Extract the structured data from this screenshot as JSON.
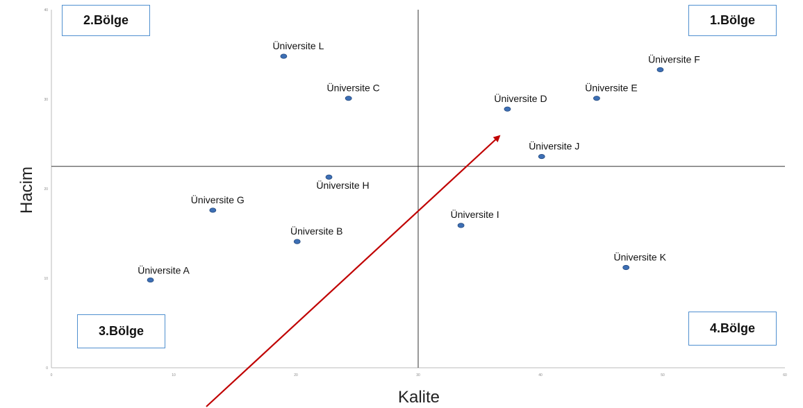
{
  "chart_data": {
    "type": "scatter",
    "xlabel": "Kalite",
    "ylabel": "Hacim",
    "xlim": [
      0,
      60
    ],
    "ylim": [
      0,
      40
    ],
    "xticks": [
      "0",
      "10",
      "20",
      "30",
      "40",
      "50",
      "60"
    ],
    "yticks": [
      "0",
      "10",
      "20",
      "30",
      "40"
    ],
    "divider_x": 30,
    "divider_y": 22.5,
    "points": [
      {
        "label": "Üniversite A",
        "x": 8.1,
        "y": 9.8
      },
      {
        "label": "Üniversite B",
        "x": 20.1,
        "y": 14.1
      },
      {
        "label": "Üniversite C",
        "x": 24.3,
        "y": 30.1
      },
      {
        "label": "Üniversite D",
        "x": 37.3,
        "y": 28.9
      },
      {
        "label": "Üniversite E",
        "x": 44.6,
        "y": 30.1
      },
      {
        "label": "Üniversite F",
        "x": 49.8,
        "y": 33.3
      },
      {
        "label": "Üniversite G",
        "x": 13.2,
        "y": 17.6
      },
      {
        "label": "Üniversite H",
        "x": 22.7,
        "y": 21.3
      },
      {
        "label": "Üniversite I",
        "x": 33.5,
        "y": 15.9
      },
      {
        "label": "Üniversite J",
        "x": 40.1,
        "y": 23.6
      },
      {
        "label": "Üniversite K",
        "x": 47.0,
        "y": 11.2
      },
      {
        "label": "Üniversite L",
        "x": 19.0,
        "y": 34.8
      }
    ],
    "regions": [
      {
        "label": "1.Bölge",
        "position": "top-right"
      },
      {
        "label": "2.Bölge",
        "position": "top-left"
      },
      {
        "label": "3.Bölge",
        "position": "bottom-left"
      },
      {
        "label": "4.Bölge",
        "position": "bottom-right"
      }
    ],
    "annotation_arrow": {
      "color": "#c00000",
      "direction": "bottom-left to top-right"
    },
    "colors": {
      "point": "#3d6fb5",
      "axis": "#333333",
      "region_border": "#4f8fcf"
    }
  }
}
